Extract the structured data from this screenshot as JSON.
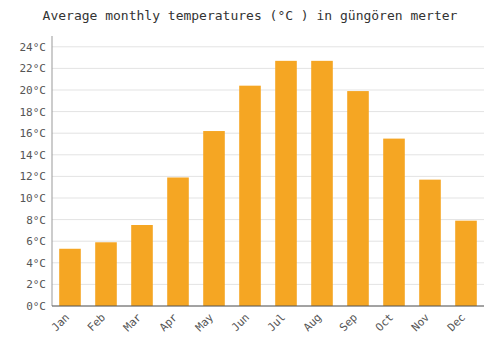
{
  "chart_data": {
    "type": "bar",
    "title": "Average monthly temperatures (°C ) in güngören merter",
    "categories": [
      "Jan",
      "Feb",
      "Mar",
      "Apr",
      "May",
      "Jun",
      "Jul",
      "Aug",
      "Sep",
      "Oct",
      "Nov",
      "Dec"
    ],
    "values": [
      5.3,
      5.9,
      7.5,
      11.9,
      16.2,
      20.4,
      22.7,
      22.7,
      19.9,
      15.5,
      11.7,
      7.9
    ],
    "color": "#F5A623",
    "ylim": [
      0,
      25
    ],
    "yticks": [
      {
        "value": 0,
        "label": "0°C"
      },
      {
        "value": 2,
        "label": "2°C"
      },
      {
        "value": 4,
        "label": "4°C"
      },
      {
        "value": 6,
        "label": "6°C"
      },
      {
        "value": 8,
        "label": "8°C"
      },
      {
        "value": 10,
        "label": "10°C"
      },
      {
        "value": 12,
        "label": "12°C"
      },
      {
        "value": 14,
        "label": "14°C"
      },
      {
        "value": 16,
        "label": "16°C"
      },
      {
        "value": 18,
        "label": "18°C"
      },
      {
        "value": 20,
        "label": "20°C"
      },
      {
        "value": 22,
        "label": "22°C"
      },
      {
        "value": 24,
        "label": "24°C"
      }
    ],
    "grid": true
  }
}
